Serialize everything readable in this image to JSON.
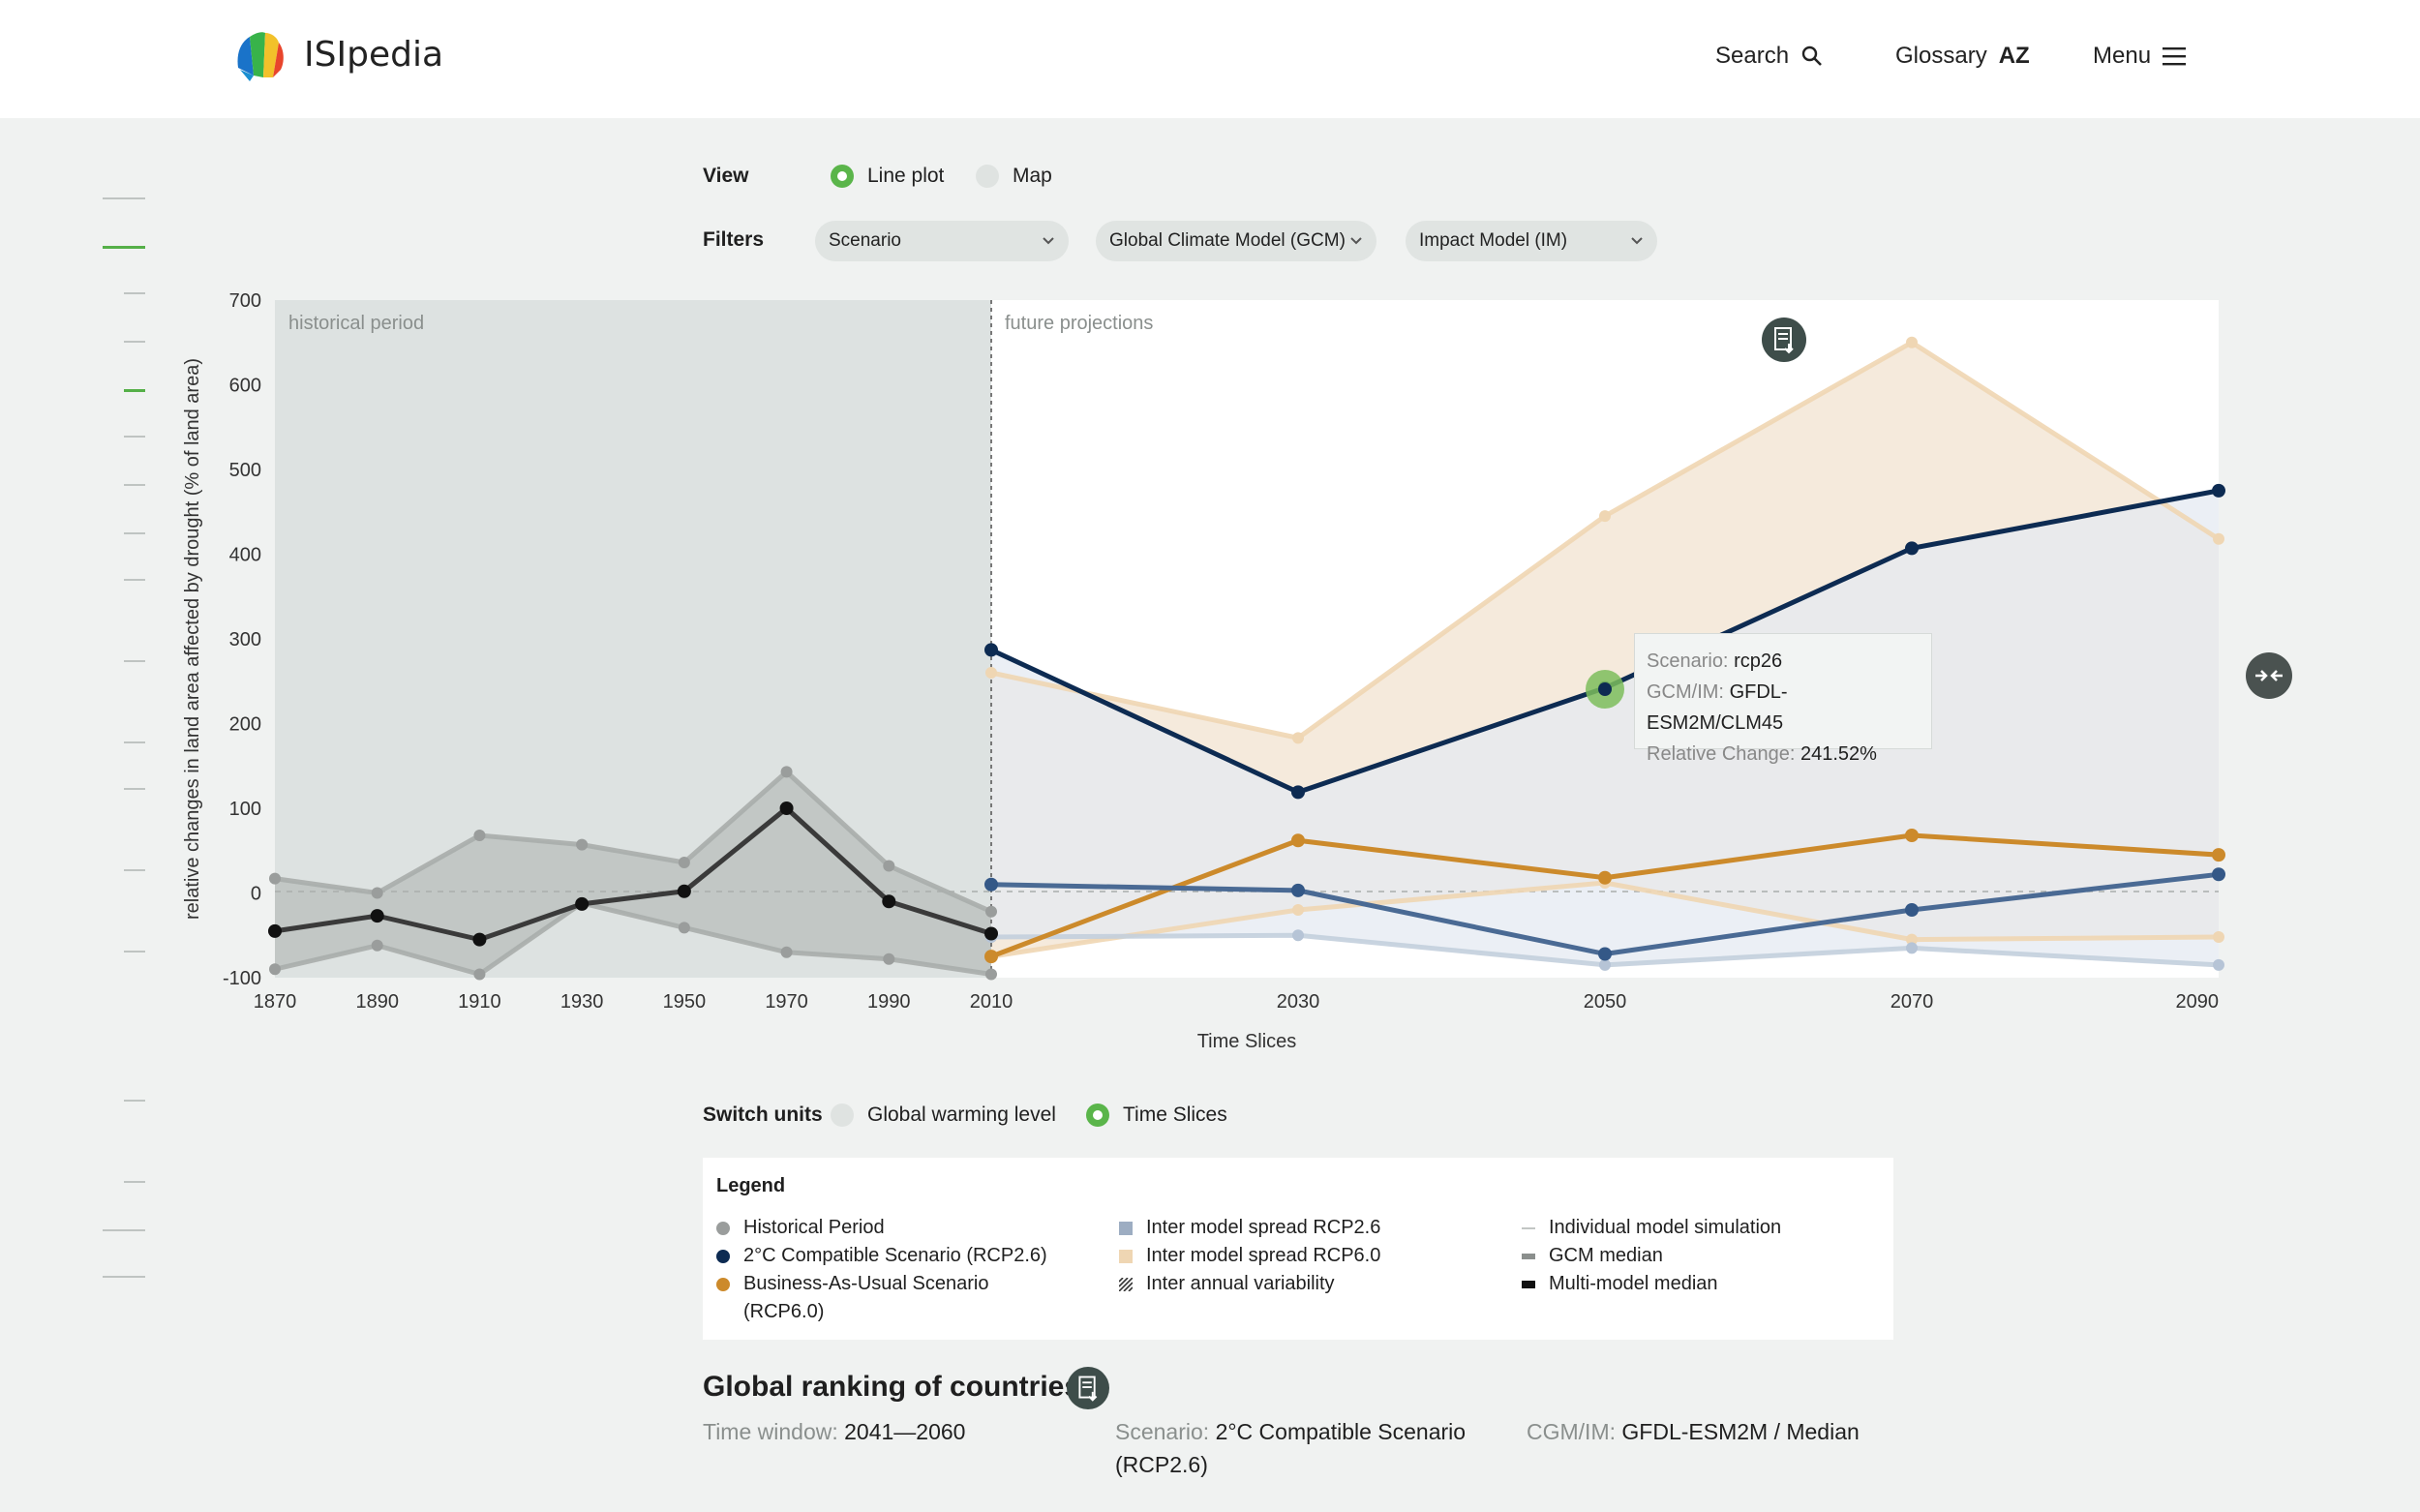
{
  "header": {
    "brand": "ISIpedia",
    "nav": {
      "search": "Search",
      "glossary": "Glossary",
      "glossary_icon": "AZ",
      "menu": "Menu"
    }
  },
  "view": {
    "label": "View",
    "options": [
      "Line plot",
      "Map"
    ],
    "selected": "Line plot"
  },
  "filters": {
    "label": "Filters",
    "scenario": "Scenario",
    "gcm": "Global Climate Model (GCM)",
    "im": "Impact Model (IM)"
  },
  "chart_data": {
    "type": "line",
    "ylabel": "relative changes in land area affected by drought (% of land area)",
    "xlabel": "Time Slices",
    "ylim": [
      -100,
      700
    ],
    "yticks": [
      -100,
      0,
      100,
      200,
      300,
      400,
      500,
      600,
      700
    ],
    "historical_xticks": [
      1870,
      1890,
      1910,
      1930,
      1950,
      1970,
      1990,
      2010
    ],
    "future_xticks": [
      2010,
      2030,
      2050,
      2070,
      2090
    ],
    "annotations": {
      "historical": "historical period",
      "future": "future projections"
    },
    "historical_median": {
      "x": [
        1870,
        1890,
        1910,
        1930,
        1950,
        1970,
        1990,
        2010
      ],
      "y": [
        -45,
        -27,
        -55,
        -13,
        2,
        100,
        -10,
        -48
      ]
    },
    "historical_upper": {
      "x": [
        1870,
        1890,
        1910,
        1930,
        1950,
        1970,
        1990,
        2010
      ],
      "y": [
        17,
        0,
        68,
        57,
        36,
        143,
        32,
        -22
      ]
    },
    "historical_lower": {
      "x": [
        1870,
        1890,
        1910,
        1930,
        1950,
        1970,
        1990,
        2010
      ],
      "y": [
        -90,
        -62,
        -96,
        -12,
        -41,
        -70,
        -78,
        -96
      ]
    },
    "series": [
      {
        "name": "rcp26",
        "x": [
          2010,
          2030,
          2050,
          2070,
          2090
        ],
        "y": [
          287,
          119,
          242,
          407,
          475
        ]
      },
      {
        "name": "rcp26 low",
        "x": [
          2010,
          2030,
          2050,
          2070,
          2090
        ],
        "y": [
          10,
          3,
          -72,
          -20,
          22
        ]
      },
      {
        "name": "rcp60",
        "x": [
          2010,
          2030,
          2050,
          2070,
          2090
        ],
        "y": [
          -75,
          62,
          18,
          68,
          45
        ]
      }
    ],
    "spread_rcp26": {
      "upper": [
        287,
        119,
        242,
        407,
        475
      ],
      "lower": [
        -52,
        -50,
        -85,
        -65,
        -85
      ]
    },
    "spread_rcp60": {
      "upper": [
        260,
        183,
        445,
        650,
        418
      ],
      "lower": [
        -75,
        -20,
        12,
        -55,
        -52
      ]
    },
    "grid": false
  },
  "tooltip": {
    "scenario_key": "Scenario:",
    "scenario_val": "rcp26",
    "gcm_key": "GCM/IM:",
    "gcm_val": "GFDL-ESM2M/CLM45",
    "change_key": "Relative Change:",
    "change_val": "241.52%"
  },
  "units": {
    "label": "Switch units",
    "options": [
      "Global warming level",
      "Time Slices"
    ],
    "selected": "Time Slices"
  },
  "legend": {
    "title": "Legend",
    "col1": [
      "Historical Period",
      "2°C Compatible Scenario (RCP2.6)",
      "Business-As-Usual Scenario",
      "(RCP6.0)"
    ],
    "col2": [
      "Inter model spread RCP2.6",
      "Inter model spread RCP6.0",
      "Inter annual variability"
    ],
    "col3": [
      "Individual model simulation",
      "GCM median",
      "Multi-model median"
    ]
  },
  "ranking": {
    "title": "Global ranking of countries",
    "time_key": "Time window:",
    "time_val": "2041—2060",
    "scenario_key": "Scenario:",
    "scenario_val": "2°C Compatible Scenario",
    "scenario_val2": "(RCP2.6)",
    "cgm_key": "CGM/IM:",
    "cgm_val": "GFDL-ESM2M / Median"
  },
  "colors": {
    "rcp26": "#0d2b52",
    "rcp60": "#cc8a2b",
    "historical": "#3a3a3a",
    "rcp26_spread": "#e4eaf1",
    "rcp60_spread": "#f4e8d8",
    "historical_bg": "#dde2e1",
    "accent": "#5ab54a"
  }
}
